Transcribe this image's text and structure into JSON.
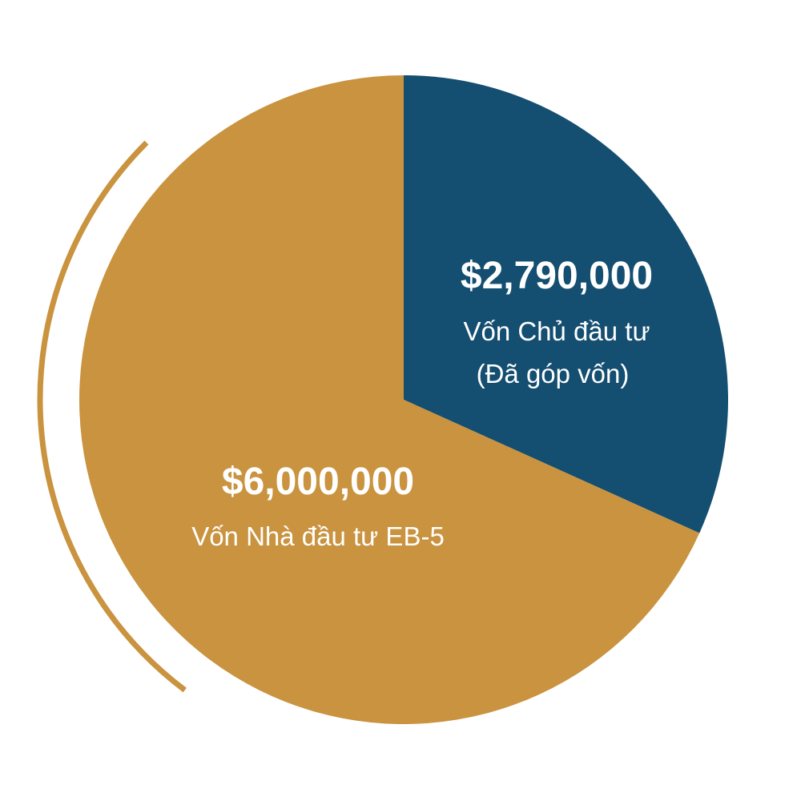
{
  "chart_data": {
    "type": "pie",
    "start_angle_deg": 0,
    "direction": "clockwise",
    "colors": {
      "equity": "#144e70",
      "eb5": "#c9933f",
      "arc_accent": "#c9933f",
      "text": "#ffffff"
    },
    "slices": [
      {
        "id": "equity",
        "value": 2790000,
        "value_label": "$2,790,000",
        "label_lines": [
          "Vốn Chủ đầu tư",
          "(Đã góp vốn)"
        ],
        "color": "#144e70"
      },
      {
        "id": "eb5",
        "value": 6000000,
        "value_label": "$6,000,000",
        "label_lines": [
          "Vốn Nhà đầu tư EB-5"
        ],
        "color": "#c9933f"
      }
    ]
  }
}
